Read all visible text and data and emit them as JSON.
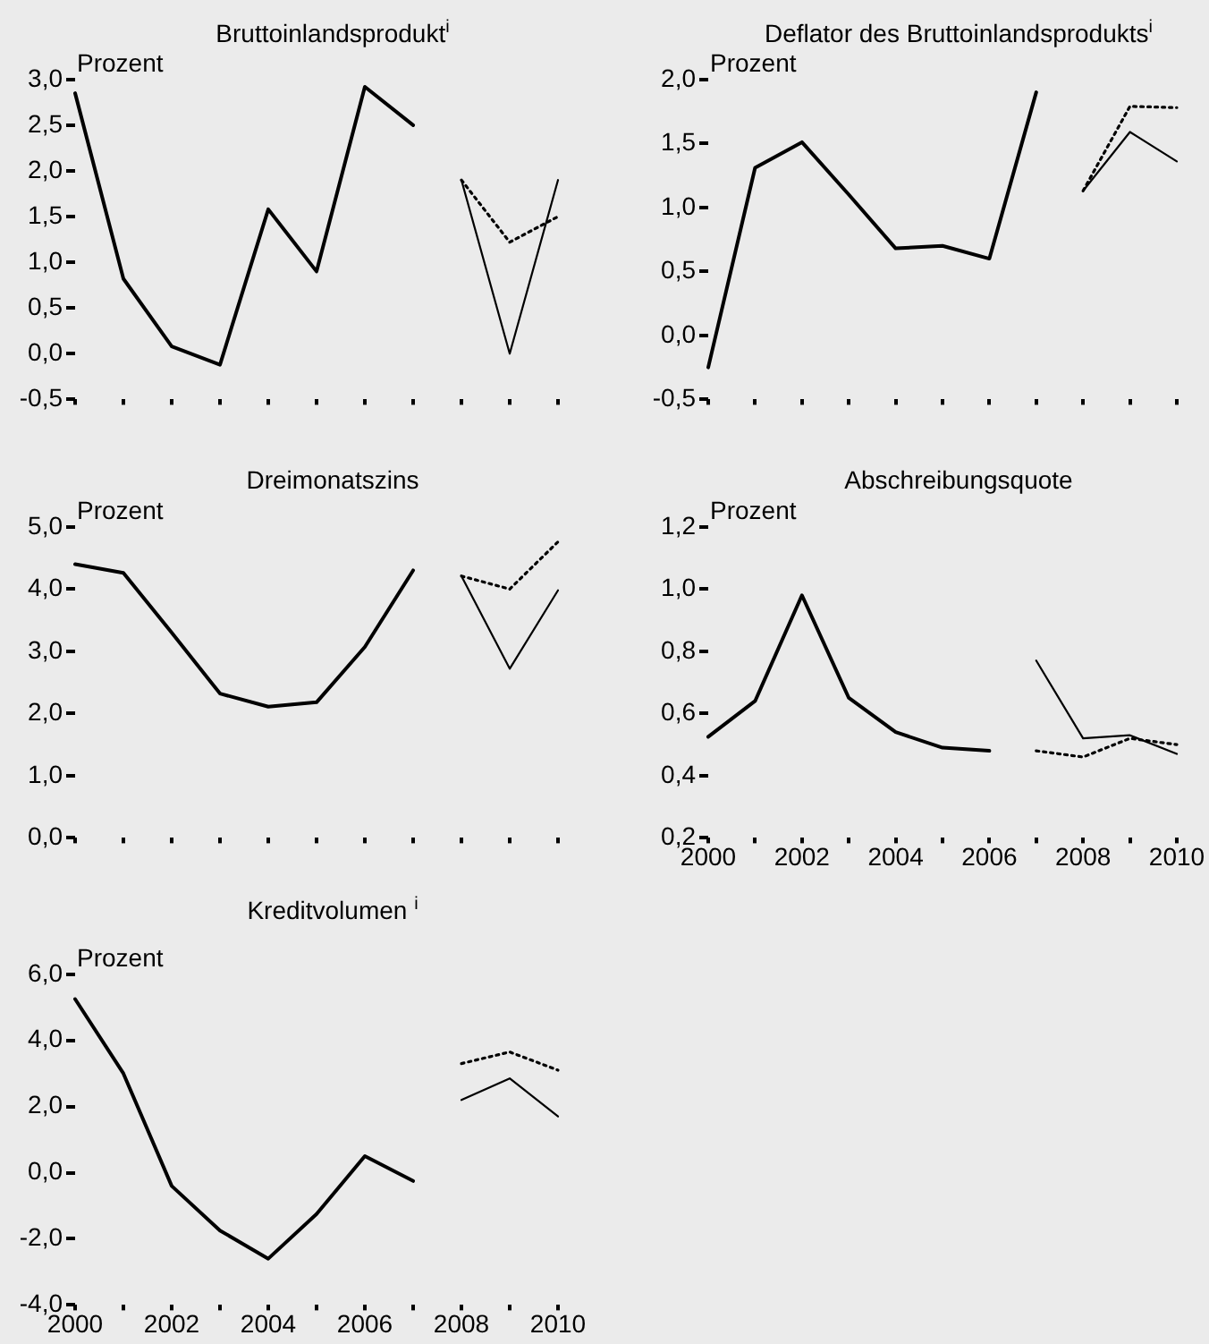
{
  "chart_data": [
    {
      "type": "line",
      "title": "Bruttoinlandsprodukt$^{i}$",
      "ylabel": "Prozent",
      "marker": "none",
      "tick_labels": "y",
      "xlim": [
        2000,
        2010
      ],
      "xticks": [
        2000,
        {
          "value": 2001,
          "label": null
        },
        {
          "value": 2002,
          "label": null
        },
        {
          "value": 2003,
          "label": null
        },
        {
          "value": 2004,
          "label": null
        },
        {
          "value": 2005,
          "label": null
        },
        {
          "value": 2006,
          "label": null
        },
        {
          "value": 2007,
          "label": null
        },
        {
          "value": 2008,
          "label": null
        },
        {
          "value": 2009,
          "label": null
        },
        2010
      ],
      "ylim": [
        -0.5,
        3.0
      ],
      "yticks": [
        {
          "value": -0.5,
          "label": "-0,5"
        },
        {
          "value": 0,
          "label": "0,0"
        },
        {
          "value": 0.5,
          "label": "0,5"
        },
        {
          "value": 1,
          "label": "1,0"
        },
        {
          "value": 1.5,
          "label": "1,5"
        },
        {
          "value": 2,
          "label": "2,0"
        },
        {
          "value": 2.5,
          "label": "2,5"
        },
        {
          "value": 3,
          "label": "3,0"
        }
      ],
      "series": [
        {
          "color": "#000000",
          "line_style": "solid",
          "x": [
            2000,
            2001,
            2002,
            2003,
            2004,
            2005,
            2006,
            2007
          ],
          "values": [
            2.85,
            0.82,
            0.08,
            -0.12,
            1.58,
            0.9,
            2.92,
            2.5
          ]
        },
        {
          "color": "#000000",
          "line_style": "solid",
          "x": [
            2008,
            2009,
            2010
          ],
          "values": [
            1.9,
            0.0,
            1.9
          ]
        },
        {
          "color": "#000000",
          "line_style": "dotted",
          "x": [
            2008,
            2009,
            2010
          ],
          "values": [
            1.9,
            1.22,
            1.5
          ]
        }
      ]
    },
    {
      "type": "line",
      "title": "Deflator des Bruttoinlandsprodukts$^{i}$",
      "ylabel": "Prozent",
      "marker": "none",
      "tick_labels": "y",
      "xlim": [
        2000,
        2010
      ],
      "xticks": [
        2000,
        {
          "value": 2001,
          "label": null
        },
        {
          "value": 2002,
          "label": null
        },
        {
          "value": 2003,
          "label": null
        },
        {
          "value": 2004,
          "label": null
        },
        {
          "value": 2005,
          "label": null
        },
        {
          "value": 2006,
          "label": null
        },
        {
          "value": 2007,
          "label": null
        },
        {
          "value": 2008,
          "label": null
        },
        {
          "value": 2009,
          "label": null
        },
        2010
      ],
      "ylim": [
        -0.5,
        2.0
      ],
      "yticks": [
        {
          "value": -0.5,
          "label": "-0,5"
        },
        {
          "value": 0,
          "label": "0,0"
        },
        {
          "value": 0.5,
          "label": "0,5"
        },
        {
          "value": 1,
          "label": "1,0"
        },
        {
          "value": 1.5,
          "label": "1,5"
        },
        {
          "value": 2,
          "label": "2,0"
        }
      ],
      "series": [
        {
          "color": "#000000",
          "line_style": "solid",
          "x": [
            2000,
            2001,
            2002,
            2003,
            2004,
            2005,
            2006,
            2007
          ],
          "values": [
            -0.25,
            1.31,
            1.51,
            1.1,
            0.68,
            0.7,
            0.6,
            1.9
          ]
        },
        {
          "color": "#000000",
          "line_style": "solid",
          "x": [
            2008,
            2009,
            2010
          ],
          "values": [
            1.13,
            1.59,
            1.36
          ]
        },
        {
          "color": "#000000",
          "line_style": "dotted",
          "x": [
            2008,
            2009,
            2010
          ],
          "values": [
            1.13,
            1.79,
            1.78
          ]
        }
      ]
    },
    {
      "type": "line",
      "title": "Dreimonatszins",
      "ylabel": "Prozent",
      "marker": "none",
      "tick_labels": "y",
      "xlim": [
        2000,
        2010
      ],
      "xticks": [
        2000,
        {
          "value": 2001,
          "label": null
        },
        {
          "value": 2002,
          "label": null
        },
        {
          "value": 2003,
          "label": null
        },
        {
          "value": 2004,
          "label": null
        },
        {
          "value": 2005,
          "label": null
        },
        {
          "value": 2006,
          "label": null
        },
        {
          "value": 2007,
          "label": null
        },
        {
          "value": 2008,
          "label": null
        },
        {
          "value": 2009,
          "label": null
        },
        2010
      ],
      "ylim": [
        0,
        5
      ],
      "yticks": [
        {
          "value": 0,
          "label": "0,0"
        },
        {
          "value": 1,
          "label": "1,0"
        },
        {
          "value": 2,
          "label": "2,0"
        },
        {
          "value": 3,
          "label": "3,0"
        },
        {
          "value": 4,
          "label": "4,0"
        },
        {
          "value": 5,
          "label": "5,0"
        }
      ],
      "series": [
        {
          "color": "#000000",
          "line_style": "solid",
          "x": [
            2000,
            2001,
            2002,
            2003,
            2004,
            2005,
            2006,
            2007
          ],
          "values": [
            4.4,
            4.26,
            3.3,
            2.32,
            2.11,
            2.18,
            3.07,
            4.3
          ]
        },
        {
          "color": "#000000",
          "line_style": "solid",
          "x": [
            2008,
            2009,
            2010
          ],
          "values": [
            4.21,
            2.72,
            3.98
          ]
        },
        {
          "color": "#000000",
          "line_style": "dotted",
          "x": [
            2008,
            2009,
            2010
          ],
          "values": [
            4.21,
            4.0,
            4.76
          ]
        }
      ]
    },
    {
      "type": "line",
      "title": "Abschreibungsquote",
      "ylabel": "Prozent",
      "marker": "none",
      "xlim": [
        2000,
        2010
      ],
      "xticks": [
        2000,
        {
          "value": 2001,
          "label": null
        },
        2002,
        {
          "value": 2003,
          "label": null
        },
        2004,
        {
          "value": 2005,
          "label": null
        },
        2006,
        {
          "value": 2007,
          "label": null
        },
        2008,
        {
          "value": 2009,
          "label": null
        },
        2010
      ],
      "ylim": [
        0.2,
        1.2
      ],
      "yticks": [
        {
          "value": 0.2,
          "label": "0,2"
        },
        {
          "value": 0.4,
          "label": "0,4"
        },
        {
          "value": 0.6,
          "label": "0,6"
        },
        {
          "value": 0.8,
          "label": "0,8"
        },
        {
          "value": 1,
          "label": "1,0"
        },
        {
          "value": 1.2,
          "label": "1,2"
        }
      ],
      "series": [
        {
          "color": "#000000",
          "line_style": "solid",
          "x": [
            2000,
            2001,
            2002,
            2003,
            2004,
            2005,
            2006
          ],
          "values": [
            0.525,
            0.64,
            0.98,
            0.65,
            0.54,
            0.49,
            0.48
          ]
        },
        {
          "color": "#000000",
          "line_style": "solid",
          "x": [
            2007,
            2008,
            2009,
            2010
          ],
          "values": [
            0.77,
            0.52,
            0.53,
            0.47
          ]
        },
        {
          "color": "#000000",
          "line_style": "dotted",
          "x": [
            2007,
            2008,
            2009,
            2010
          ],
          "values": [
            0.48,
            0.46,
            0.52,
            0.5
          ]
        }
      ]
    },
    {
      "type": "line",
      "title": "Kreditvolumen $^{i}$",
      "ylabel": "Prozent",
      "marker": "none",
      "xlim": [
        2000,
        2010
      ],
      "xticks": [
        2000,
        {
          "value": 2001,
          "label": null
        },
        2002,
        {
          "value": 2003,
          "label": null
        },
        2004,
        {
          "value": 2005,
          "label": null
        },
        2006,
        {
          "value": 2007,
          "label": null
        },
        2008,
        {
          "value": 2009,
          "label": null
        },
        2010
      ],
      "ylim": [
        -4,
        6
      ],
      "yticks": [
        {
          "value": -4,
          "label": "-4,0"
        },
        {
          "value": -2,
          "label": "-2,0"
        },
        {
          "value": 0,
          "label": "0,0"
        },
        {
          "value": 2,
          "label": "2,0"
        },
        {
          "value": 4,
          "label": "4,0"
        },
        {
          "value": 6,
          "label": "6,0"
        }
      ],
      "series": [
        {
          "color": "#000000",
          "line_style": "solid",
          "x": [
            2000,
            2001,
            2002,
            2003,
            2004,
            2005,
            2006,
            2007
          ],
          "values": [
            5.25,
            3.0,
            -0.4,
            -1.75,
            -2.6,
            -1.25,
            0.5,
            -0.25
          ]
        },
        {
          "color": "#000000",
          "line_style": "solid",
          "x": [
            2008,
            2009,
            2010
          ],
          "values": [
            2.2,
            2.85,
            1.7
          ]
        },
        {
          "color": "#000000",
          "line_style": "dotted",
          "x": [
            2008,
            2009,
            2010
          ],
          "values": [
            3.3,
            3.65,
            3.1
          ]
        }
      ]
    }
  ]
}
